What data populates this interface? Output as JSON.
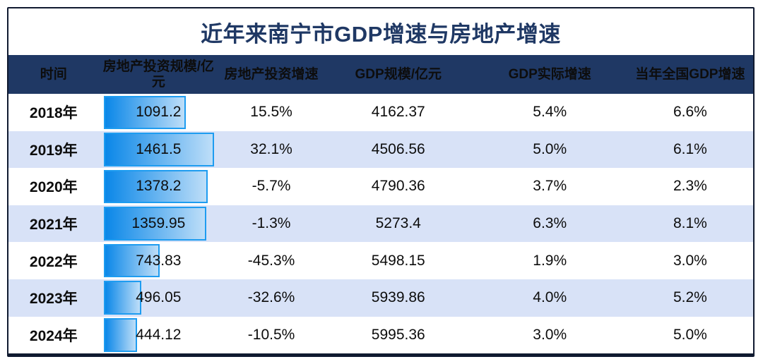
{
  "page": {
    "title": "近年来南宁市GDP增速与房地产增速"
  },
  "colors": {
    "title_text": "#1F3864",
    "header_bg": "#1F3864",
    "header_text": "#FFFFFF",
    "row_alt_bg": "#D8E2F7",
    "frame_border": "#101A30",
    "bar_gradient_start": "#0A87E8",
    "bar_gradient_end": "#BEDEF8",
    "bar_border": "#1E9CF0"
  },
  "chart_data": {
    "type": "table",
    "title": "近年来南宁市GDP增速与房地产增速",
    "columns": [
      "时间",
      "房地产投资规模/亿元",
      "房地产投资增速",
      "GDP规模/亿元",
      "GDP实际增速",
      "当年全国GDP增速"
    ],
    "bar_column": "房地产投资规模/亿元",
    "bar_value_max_shown": 1461.5,
    "rows": [
      {
        "year": "2018年",
        "investment": 1091.2,
        "investment_growth": "15.5%",
        "gdp": 4162.37,
        "gdp_growth": "5.4%",
        "national_growth": "6.6%"
      },
      {
        "year": "2019年",
        "investment": 1461.5,
        "investment_growth": "32.1%",
        "gdp": 4506.56,
        "gdp_growth": "5.0%",
        "national_growth": "6.1%"
      },
      {
        "year": "2020年",
        "investment": 1378.2,
        "investment_growth": "-5.7%",
        "gdp": 4790.36,
        "gdp_growth": "3.7%",
        "national_growth": "2.3%"
      },
      {
        "year": "2021年",
        "investment": 1359.95,
        "investment_growth": "-1.3%",
        "gdp": 5273.4,
        "gdp_growth": "6.3%",
        "national_growth": "8.1%"
      },
      {
        "year": "2022年",
        "investment": 743.83,
        "investment_growth": "-45.3%",
        "gdp": 5498.15,
        "gdp_growth": "1.9%",
        "national_growth": "3.0%"
      },
      {
        "year": "2023年",
        "investment": 496.05,
        "investment_growth": "-32.6%",
        "gdp": 5939.86,
        "gdp_growth": "4.0%",
        "national_growth": "5.2%"
      },
      {
        "year": "2024年",
        "investment": 444.12,
        "investment_growth": "-10.5%",
        "gdp": 5995.36,
        "gdp_growth": "3.0%",
        "national_growth": "5.0%"
      }
    ]
  }
}
